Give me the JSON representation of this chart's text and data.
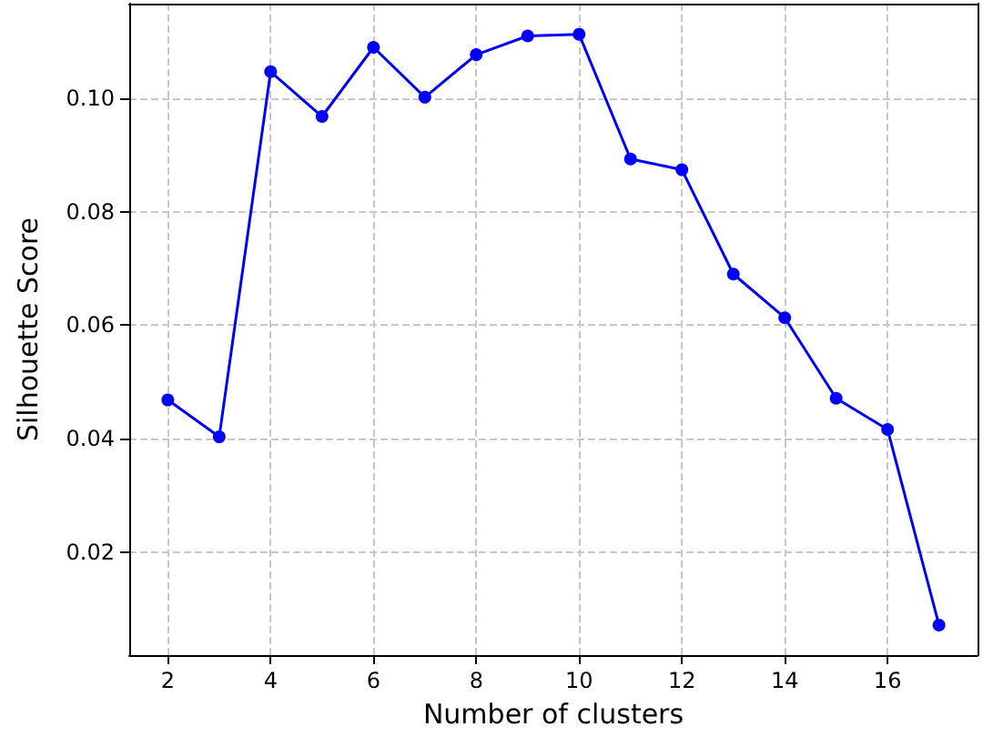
{
  "chart_data": {
    "type": "line",
    "xlabel": "Number of clusters",
    "ylabel": "Silhouette Score",
    "x": [
      2,
      3,
      4,
      5,
      6,
      7,
      8,
      9,
      10,
      11,
      12,
      13,
      14,
      15,
      16,
      17
    ],
    "series": [
      {
        "color": "#0000ff",
        "values": [
          0.0468,
          0.0403,
          0.1047,
          0.0968,
          0.109,
          0.1002,
          0.1077,
          0.111,
          0.1113,
          0.0893,
          0.0874,
          0.069,
          0.0613,
          0.0471,
          0.0416,
          0.0071
        ]
      }
    ],
    "xlim": [
      1.25,
      17.75
    ],
    "ylim": [
      0.0018,
      0.1167
    ],
    "xticks": [
      2,
      4,
      6,
      8,
      10,
      12,
      14,
      16
    ],
    "yticks": [
      {
        "value": 0.02,
        "label": "0.02"
      },
      {
        "value": 0.04,
        "label": "0.04"
      },
      {
        "value": 0.06,
        "label": "0.06"
      },
      {
        "value": 0.08,
        "label": "0.08"
      },
      {
        "value": 0.1,
        "label": "0.10"
      }
    ],
    "grid": true,
    "marker": "circle",
    "line_style": "solid"
  }
}
